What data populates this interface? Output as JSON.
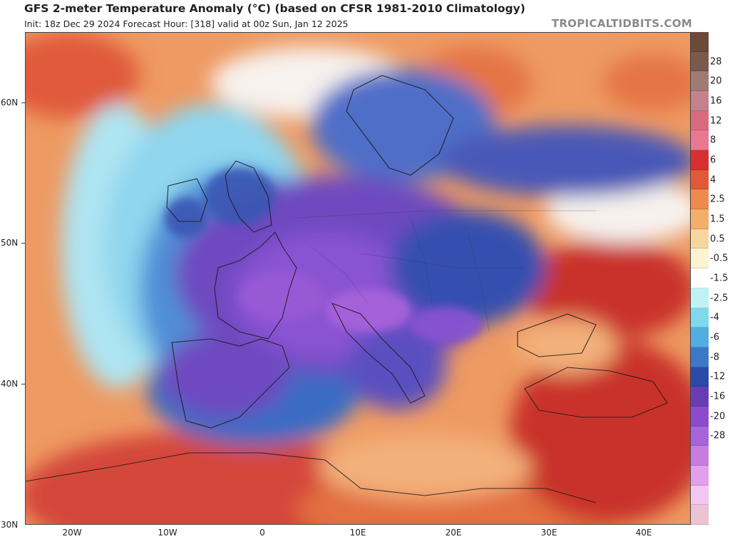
{
  "header": {
    "title": "GFS 2-meter Temperature Anomaly (°C) (based on CFSR 1981-2010 Climatology)",
    "subtitle": "Init: 18z Dec 29 2024   Forecast Hour: [318]   valid at 00z Sun, Jan 12 2025",
    "watermark": "TROPICALTIDBITS.COM"
  },
  "axes": {
    "lat_labels": [
      "60N",
      "50N",
      "40N",
      "30N"
    ],
    "lon_labels": [
      "20W",
      "10W",
      "0",
      "10E",
      "20E",
      "30E",
      "40E"
    ]
  },
  "colorbar": {
    "labels": [
      "28",
      "20",
      "16",
      "12",
      "8",
      "6",
      "4",
      "2.5",
      "1.5",
      "0.5",
      "-0.5",
      "-1.5",
      "-2.5",
      "-4",
      "-6",
      "-8",
      "-12",
      "-16",
      "-20",
      "-28"
    ],
    "colors": [
      "#6b4a3a",
      "#7a5a4c",
      "#a07a74",
      "#c4828c",
      "#d86a80",
      "#e87890",
      "#d63030",
      "#e05a3a",
      "#ee8a4e",
      "#f2ae6a",
      "#f8d6a0",
      "#fdf3d0",
      "#ffffff",
      "#bff3f3",
      "#7fd8ec",
      "#52aee0",
      "#3b78c8",
      "#2a4aa8",
      "#6a3cb4",
      "#8a4ccc",
      "#a864da",
      "#c87ce0",
      "#e2a0ec",
      "#f2c6f2",
      "#ecc2d4"
    ]
  },
  "map": {
    "region": "Europe / North Africa / Middle East",
    "colors": {
      "warm_deep": "#c9332a",
      "warm_mid": "#e57445",
      "warm_light": "#f3b07a",
      "neutral": "#f7f2ee",
      "cool_light": "#8fd6ee",
      "cool_mid": "#4f8fd6",
      "cool_deep": "#3550b0",
      "cold_purple": "#6e48c0",
      "cold_violet": "#9a5ad6"
    }
  }
}
